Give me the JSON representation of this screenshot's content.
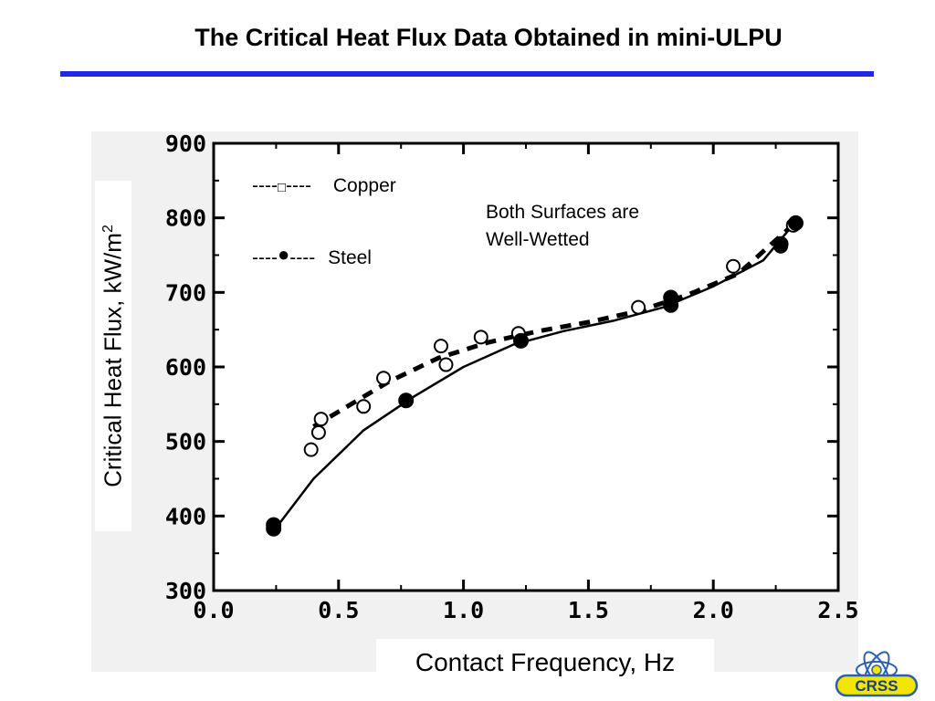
{
  "title": "The Critical Heat Flux Data Obtained in mini-ULPU",
  "colors": {
    "title_rule": "#1f28e6",
    "logo_ring": "#2b5fb0",
    "logo_fill": "#f2e600",
    "logo_text": "#163f8f"
  },
  "chart_data": {
    "type": "scatter",
    "xlabel": "Contact Frequency, Hz",
    "ylabel_main": "Critical Heat Flux, kW/m",
    "ylabel_sup": "2",
    "xlim": [
      0.0,
      2.5
    ],
    "ylim": [
      300,
      900
    ],
    "x_ticks": [
      "0.0",
      "0.5",
      "1.0",
      "1.5",
      "2.0",
      "2.5"
    ],
    "y_ticks": [
      "300",
      "400",
      "500",
      "600",
      "700",
      "800",
      "900"
    ],
    "legend": {
      "copper": {
        "line": "----",
        "marker": "□",
        "label": "Copper"
      },
      "steel": {
        "line": "----",
        "marker": "●",
        "label": "Steel"
      }
    },
    "annotation": [
      "Both Surfaces are",
      "Well-Wetted"
    ],
    "series": [
      {
        "name": "Copper",
        "marker": "open-circle",
        "line": "dashed",
        "points": [
          [
            0.39,
            489
          ],
          [
            0.42,
            512
          ],
          [
            0.43,
            530
          ],
          [
            0.6,
            547
          ],
          [
            0.68,
            585
          ],
          [
            0.91,
            628
          ],
          [
            0.93,
            603
          ],
          [
            1.07,
            640
          ],
          [
            1.22,
            645
          ],
          [
            1.7,
            680
          ],
          [
            1.83,
            693
          ],
          [
            2.08,
            735
          ],
          [
            2.27,
            762
          ],
          [
            2.32,
            790
          ]
        ],
        "fit": [
          [
            0.4,
            520
          ],
          [
            0.5,
            540
          ],
          [
            0.7,
            580
          ],
          [
            0.9,
            612
          ],
          [
            1.1,
            633
          ],
          [
            1.3,
            648
          ],
          [
            1.5,
            660
          ],
          [
            1.7,
            675
          ],
          [
            1.9,
            697
          ],
          [
            2.1,
            725
          ],
          [
            2.3,
            785
          ]
        ]
      },
      {
        "name": "Steel",
        "marker": "filled-circle",
        "line": "solid",
        "points": [
          [
            0.24,
            383
          ],
          [
            0.24,
            388
          ],
          [
            0.77,
            555
          ],
          [
            1.23,
            635
          ],
          [
            1.83,
            683
          ],
          [
            1.83,
            693
          ],
          [
            2.27,
            765
          ],
          [
            2.33,
            793
          ]
        ],
        "fit": [
          [
            0.24,
            380
          ],
          [
            0.4,
            450
          ],
          [
            0.6,
            515
          ],
          [
            0.8,
            560
          ],
          [
            1.0,
            600
          ],
          [
            1.2,
            630
          ],
          [
            1.4,
            648
          ],
          [
            1.6,
            662
          ],
          [
            1.8,
            680
          ],
          [
            2.0,
            708
          ],
          [
            2.2,
            743
          ],
          [
            2.33,
            795
          ]
        ]
      }
    ]
  },
  "logo": {
    "text": "CRSS"
  }
}
